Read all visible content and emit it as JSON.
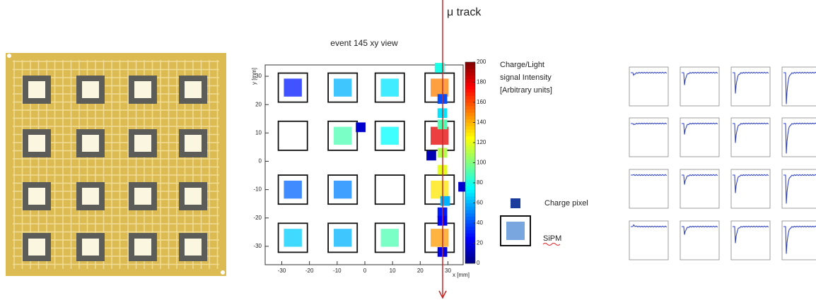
{
  "chart_data": {
    "type": "heatmap",
    "annotation": "μ track",
    "title": "event 145 xy view",
    "xlabel": "x [mm]",
    "ylabel": "y [mm]",
    "xlim": [
      -36,
      35.5
    ],
    "ylim": [
      -36.5,
      34
    ],
    "xticks": [
      -30,
      -20,
      -10,
      0,
      10,
      20,
      30
    ],
    "yticks": [
      -30,
      -20,
      -10,
      0,
      10,
      20,
      30
    ],
    "colorbar": {
      "label": [
        "Charge/Light",
        "signal Intensity",
        "[Arbitrary units]"
      ],
      "lim": [
        0,
        200
      ],
      "ticks": [
        0,
        20,
        40,
        60,
        80,
        100,
        120,
        140,
        160,
        180,
        200
      ]
    },
    "sipms": [
      {
        "x": -26,
        "y": 26,
        "value": 30
      },
      {
        "x": -8,
        "y": 26,
        "value": 60
      },
      {
        "x": 9,
        "y": 26,
        "value": 70
      },
      {
        "x": 27,
        "y": 26,
        "value": 150
      },
      {
        "x": -26,
        "y": 9,
        "value": null
      },
      {
        "x": -8,
        "y": 9,
        "value": 90
      },
      {
        "x": 9,
        "y": 9,
        "value": 75
      },
      {
        "x": 27,
        "y": 9,
        "value": 180
      },
      {
        "x": -26,
        "y": -10,
        "value": 45
      },
      {
        "x": -8,
        "y": -10,
        "value": 50
      },
      {
        "x": 9,
        "y": -10,
        "value": null
      },
      {
        "x": 27,
        "y": -10,
        "value": 130
      },
      {
        "x": -26,
        "y": -27,
        "value": 65
      },
      {
        "x": -8,
        "y": -27,
        "value": 60
      },
      {
        "x": 9,
        "y": -27,
        "value": 90
      },
      {
        "x": 27,
        "y": -27,
        "value": 145
      }
    ],
    "pixels": [
      {
        "x": 27,
        "y": 33,
        "value": 80
      },
      {
        "x": 28,
        "y": 22,
        "value": 40
      },
      {
        "x": 28,
        "y": 17,
        "value": 70
      },
      {
        "x": 28,
        "y": 13,
        "value": 90
      },
      {
        "x": 28,
        "y": 3,
        "value": 110
      },
      {
        "x": 28,
        "y": -3,
        "value": 120
      },
      {
        "x": 29,
        "y": -14,
        "value": 60
      },
      {
        "x": 28,
        "y": -18,
        "value": 30
      },
      {
        "x": 28,
        "y": -21,
        "value": 25
      },
      {
        "x": 28,
        "y": -32,
        "value": 20
      },
      {
        "x": -1.5,
        "y": 12,
        "value": 15
      },
      {
        "x": 24,
        "y": 2,
        "value": 10
      },
      {
        "x": 35.5,
        "y": -9,
        "value": 15
      }
    ],
    "legend": {
      "pixel": "Charge pixel",
      "sipm": "SiPM"
    }
  }
}
